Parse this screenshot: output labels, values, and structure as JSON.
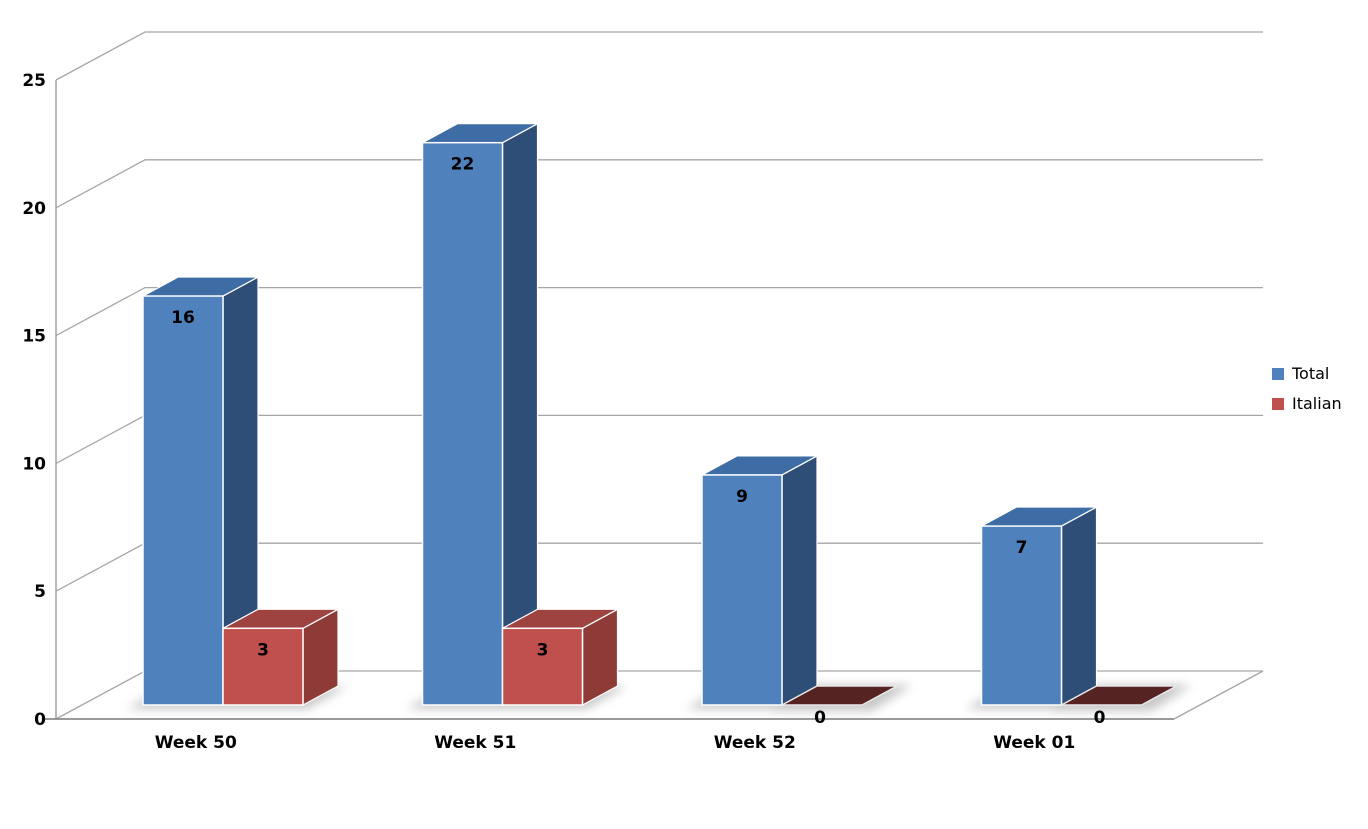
{
  "page": {
    "background": "#FFFFFF"
  },
  "chart_data": {
    "type": "bar",
    "style": "3d-clustered-column",
    "categories": [
      "Week 50",
      "Week 51",
      "Week 52",
      "Week 01"
    ],
    "series": [
      {
        "name": "Total",
        "values": [
          16,
          22,
          9,
          7
        ],
        "color": "#4F81BD",
        "color_side": "#2E4D77",
        "color_top": "#3E6CA5"
      },
      {
        "name": "Italian",
        "values": [
          3,
          3,
          0,
          0
        ],
        "color": "#C0504D",
        "color_side": "#8E3B38",
        "color_top": "#9E4340",
        "color_zero": "#552322"
      }
    ],
    "data_labels": [
      [
        "16",
        "22",
        "9",
        "7"
      ],
      [
        "3",
        "3",
        "0",
        "0"
      ]
    ],
    "ylim": [
      0,
      25
    ],
    "yticks": [
      0,
      5,
      10,
      15,
      20,
      25
    ],
    "ytick_labels": [
      "0",
      "5",
      "10",
      "15",
      "20",
      "25"
    ],
    "grid": true,
    "legend_position": "right",
    "axis_color": "#A6A6A6",
    "floor_edge_color": "#8C8C8C",
    "label_color": "#000000",
    "edge_color": "#FFFFFF",
    "shadow_color": "#909090"
  },
  "legend": {
    "items": [
      {
        "label": "Total",
        "color": "#4F81BD"
      },
      {
        "label": "Italian",
        "color": "#C0504D"
      }
    ]
  }
}
